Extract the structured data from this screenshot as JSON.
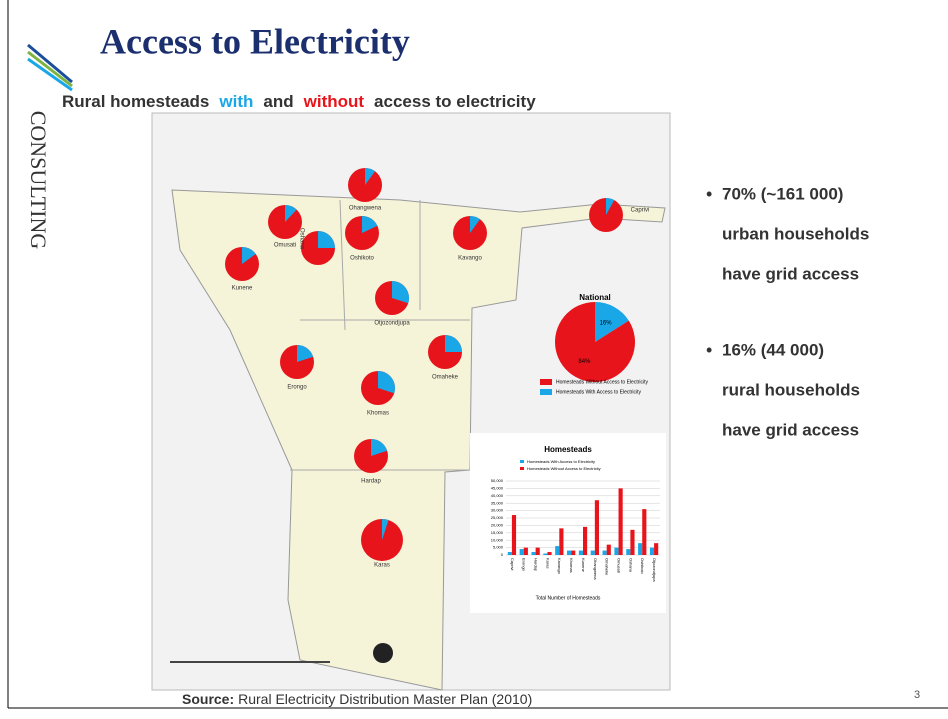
{
  "header": {
    "title": "Access to Electricity",
    "logo": "CONSULTING"
  },
  "subtitle": [
    "Rural homesteads",
    "with",
    "and",
    "without",
    "access to electricity"
  ],
  "map": {
    "regions": [
      {
        "name": "Ohangwena",
        "with_pct": 10
      },
      {
        "name": "Omusati",
        "with_pct": 12
      },
      {
        "name": "Oshana",
        "with_pct": 25
      },
      {
        "name": "Oshikoto",
        "with_pct": 18
      },
      {
        "name": "Kavango",
        "with_pct": 10
      },
      {
        "name": "Caprivi",
        "with_pct": 8
      },
      {
        "name": "Kunene",
        "with_pct": 15
      },
      {
        "name": "Otjozondjupa",
        "with_pct": 30
      },
      {
        "name": "Omaheke",
        "with_pct": 25
      },
      {
        "name": "Erongo",
        "with_pct": 20
      },
      {
        "name": "Khomas",
        "with_pct": 30
      },
      {
        "name": "Hardap",
        "with_pct": 20
      },
      {
        "name": "Karas",
        "with_pct": 5
      }
    ],
    "national": {
      "title": "National",
      "values": [
        84,
        16
      ],
      "value_labels": [
        "84%",
        "16%"
      ],
      "colors": [
        "#e8141b",
        "#1aa7e8"
      ],
      "legend": [
        "Homesteads Without Access to Electricity",
        "Homesteads With Access to Electricity"
      ]
    }
  },
  "chart_data": {
    "type": "bar",
    "title": "Homesteads",
    "x_label": "Total Number of Homesteads",
    "categories": [
      "Caprivi",
      "Erongo",
      "Hardap",
      "Karas",
      "Kavango",
      "Khomas",
      "Kunene",
      "Ohangwena",
      "Omaheke",
      "Omusati",
      "Oshana",
      "Oshikoto",
      "Otjozondjupa"
    ],
    "series": [
      {
        "name": "Homesteads With Access to Electricity",
        "color": "#1aa7e8",
        "values": [
          2000,
          4000,
          2000,
          1000,
          6000,
          3000,
          3000,
          3000,
          3000,
          5000,
          4000,
          8000,
          5000
        ]
      },
      {
        "name": "Homesteads Without Access to Electricity",
        "color": "#e8141b",
        "values": [
          27000,
          5000,
          5000,
          2000,
          18000,
          3000,
          19000,
          37000,
          7000,
          45000,
          17000,
          31000,
          8000
        ]
      }
    ],
    "ylim": [
      0,
      50000
    ],
    "yticks": [
      0,
      {
        "value": 5000,
        "label": "5,000"
      },
      {
        "value": 10000,
        "label": "10,000"
      },
      {
        "value": 15000,
        "label": "15,000"
      },
      {
        "value": 20000,
        "label": "20,000"
      },
      {
        "value": 25000,
        "label": "25,000"
      },
      {
        "value": 30000,
        "label": "30,000"
      },
      {
        "value": 35000,
        "label": "35,000"
      },
      {
        "value": 40000,
        "label": "40,000"
      },
      {
        "value": 45000,
        "label": "45,000"
      },
      {
        "value": 50000,
        "label": "50,000"
      }
    ],
    "grid": true
  },
  "bullets": [
    [
      "70% (~161 000)",
      "urban households",
      "have grid access"
    ],
    [
      "16% (44 000)",
      "rural households",
      "have grid access"
    ]
  ],
  "source": {
    "label": "Source:",
    "text": "Rural Electricity Distribution Master Plan (2010)"
  },
  "page_number": "3"
}
